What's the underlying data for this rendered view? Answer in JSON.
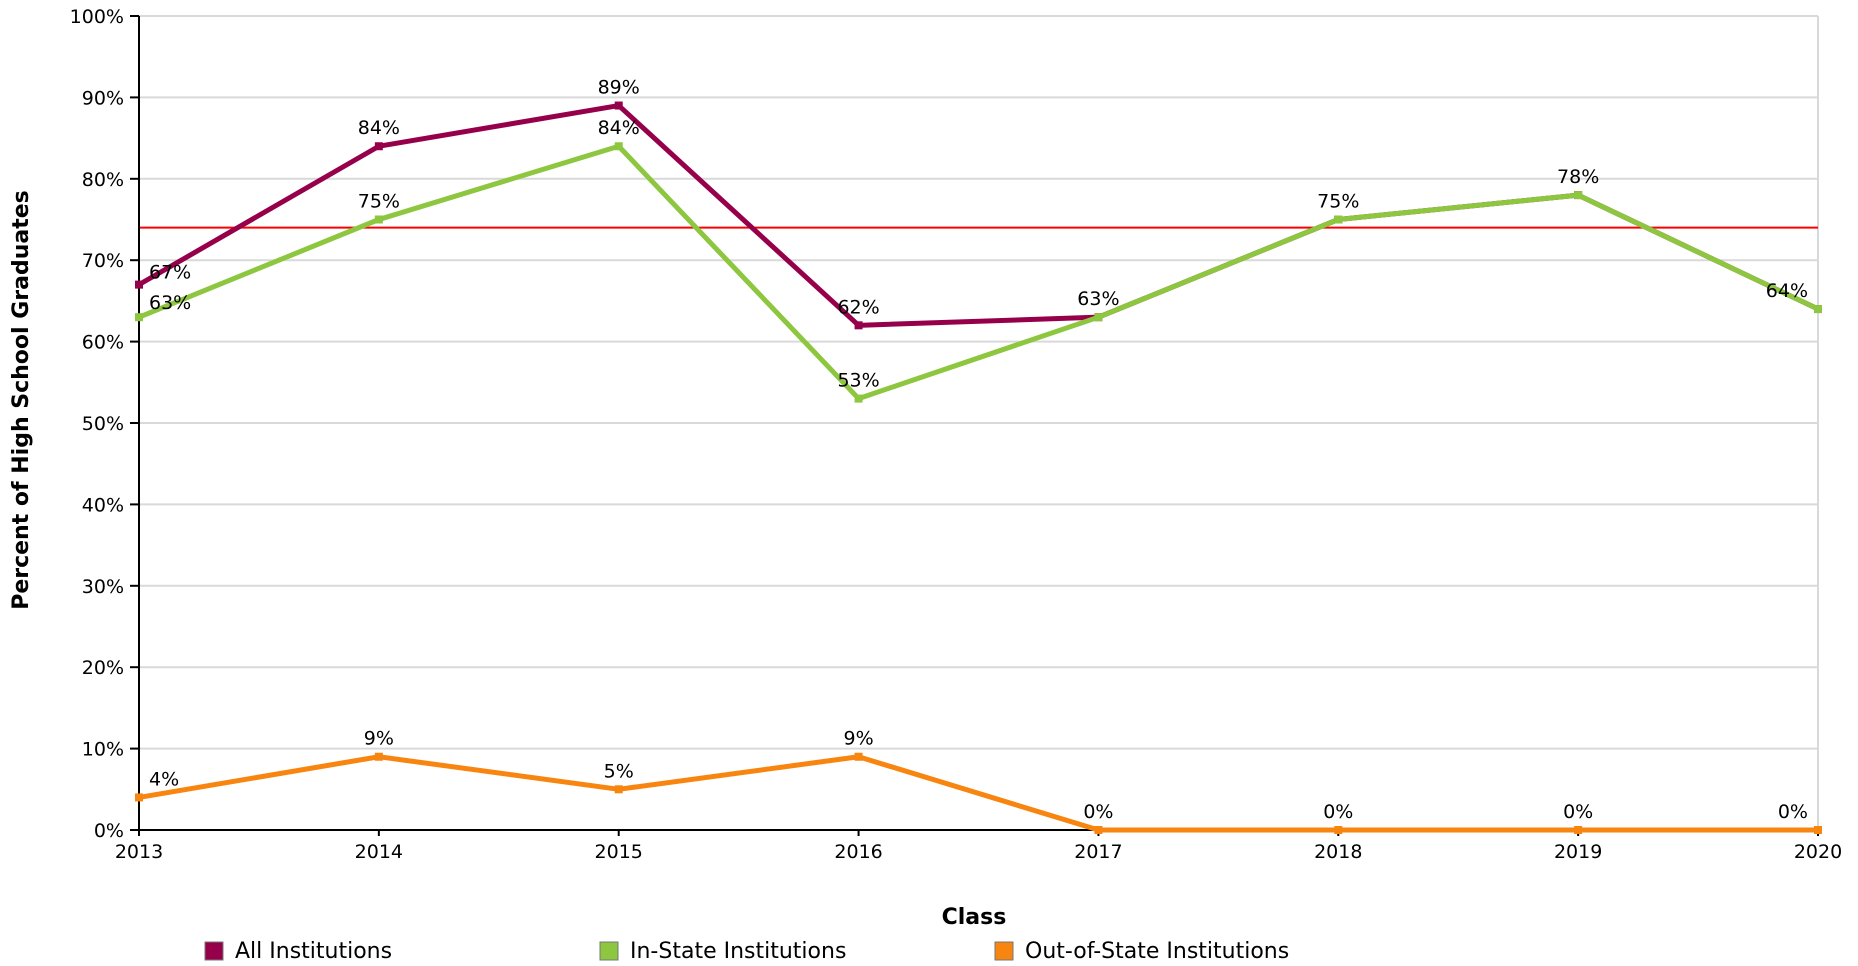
{
  "chart_data": {
    "type": "line",
    "categories": [
      "2013",
      "2014",
      "2015",
      "2016",
      "2017",
      "2018",
      "2019",
      "2020"
    ],
    "series": [
      {
        "name": "All Institutions",
        "color": "#96004B",
        "values": [
          67,
          84,
          89,
          62,
          63,
          75,
          78,
          64
        ],
        "labels": [
          "67%",
          "84%",
          "89%",
          "62%",
          "",
          "",
          "",
          ""
        ]
      },
      {
        "name": "In-State Institutions",
        "color": "#8DC63F",
        "values": [
          63,
          75,
          84,
          53,
          63,
          75,
          78,
          64
        ],
        "labels": [
          "63%",
          "75%",
          "84%",
          "53%",
          "63%",
          "75%",
          "78%",
          "64%"
        ]
      },
      {
        "name": "Out-of-State Institutions",
        "color": "#F7850F",
        "values": [
          4,
          9,
          5,
          9,
          0,
          0,
          0,
          0
        ],
        "labels": [
          "4%",
          "9%",
          "5%",
          "9%",
          "0%",
          "0%",
          "0%",
          "0%"
        ]
      }
    ],
    "reference_line": {
      "value": 74,
      "color": "#FF0000"
    },
    "xlabel": "Class",
    "ylabel": "Percent of High School Graduates",
    "ylim": [
      0,
      100
    ],
    "yticks": [
      "0%",
      "10%",
      "20%",
      "30%",
      "40%",
      "50%",
      "60%",
      "70%",
      "80%",
      "90%",
      "100%"
    ],
    "grid": true,
    "legend_position": "bottom"
  }
}
